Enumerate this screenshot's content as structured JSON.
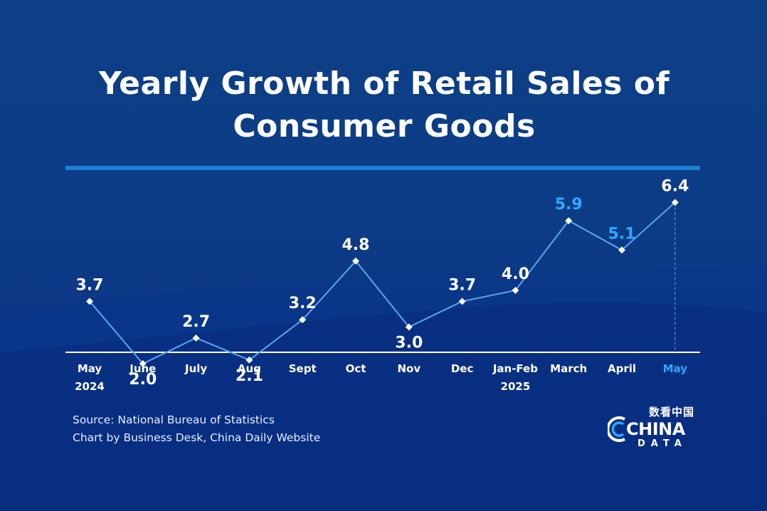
{
  "header": {
    "title_line1": "Yearly Growth of Retail Sales of",
    "title_line2": "Consumer Goods"
  },
  "chart_data": {
    "type": "line",
    "title": "Yearly Growth of Retail Sales of Consumer Goods",
    "xlabel": "",
    "ylabel": "",
    "grid": false,
    "categories": [
      [
        "May",
        "2024"
      ],
      [
        "June"
      ],
      [
        "July"
      ],
      [
        "Aug"
      ],
      [
        "Sept"
      ],
      [
        "Oct"
      ],
      [
        "Nov"
      ],
      [
        "Dec"
      ],
      [
        "Jan-Feb",
        "2025"
      ],
      [
        "March"
      ],
      [
        "April"
      ],
      [
        "May"
      ]
    ],
    "series": [
      {
        "values": [
          3.7,
          2.0,
          2.7,
          2.1,
          3.2,
          4.8,
          3.0,
          3.7,
          4.0,
          5.9,
          5.1,
          6.4
        ]
      }
    ],
    "value_labels": [
      "3.7",
      "2.0",
      "2.7",
      "2.1",
      "3.2",
      "4.8",
      "3.0",
      "3.7",
      "4.0",
      "5.9",
      "5.1",
      "6.4"
    ],
    "label_positions": [
      "above",
      "below",
      "above",
      "below",
      "above",
      "above",
      "below",
      "above",
      "above",
      "above",
      "above",
      "above"
    ],
    "highlight_value_indices": [
      9,
      10
    ],
    "highlight_category_indices": [
      11
    ],
    "ylim": [
      0,
      7
    ]
  },
  "footer": {
    "source": "Source: National Bureau of Statistics",
    "credit": "Chart by Business Desk, China Daily Website"
  },
  "logo": {
    "cn_text": "数看中国",
    "word": "CHINA",
    "sub": "DATA"
  },
  "colors": {
    "background": "#0c3c86",
    "line": "#5aa6f0",
    "label": "#ffffff",
    "highlight": "#2ea8ff",
    "divider": "#1f7fd6"
  }
}
